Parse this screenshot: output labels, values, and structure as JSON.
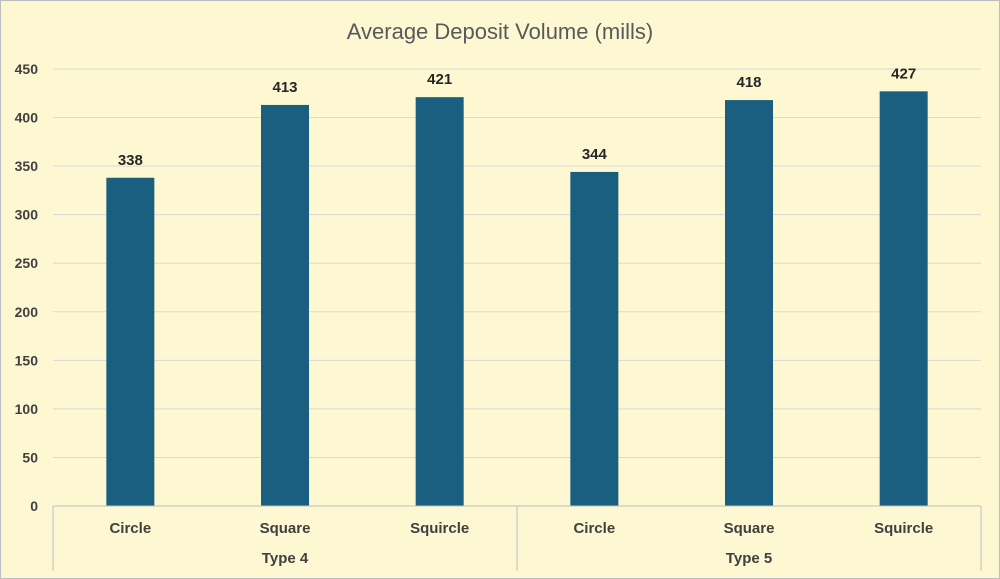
{
  "chart_data": {
    "type": "bar",
    "title": "Average Deposit Volume (mills)",
    "xlabel": "",
    "ylabel": "",
    "ylim": [
      0,
      450
    ],
    "yticks": [
      0,
      50,
      100,
      150,
      200,
      250,
      300,
      350,
      400,
      450
    ],
    "grid": true,
    "groups": [
      {
        "label": "Type 4",
        "categories": [
          "Circle",
          "Square",
          "Squircle"
        ]
      },
      {
        "label": "Type 5",
        "categories": [
          "Circle",
          "Square",
          "Squircle"
        ]
      }
    ],
    "categories": [
      "Circle",
      "Square",
      "Squircle",
      "Circle",
      "Square",
      "Squircle"
    ],
    "values": [
      338,
      413,
      421,
      344,
      418,
      427
    ],
    "bar_color": "#1a5e80",
    "background_color": "#fdf8d2"
  }
}
